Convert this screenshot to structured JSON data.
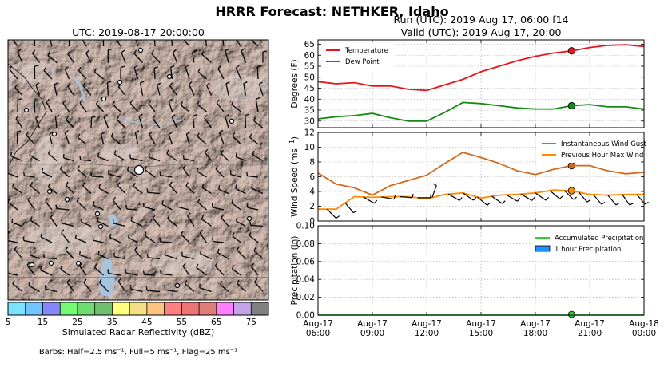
{
  "page": {
    "title": "HRRR Forecast: NETHKER, Idaho",
    "run_line": "Run (UTC): 2019 Aug 17, 06:00 f14",
    "valid_line": "Valid (UTC): 2019 Aug 17, 20:00"
  },
  "map": {
    "title": "UTC: 2019-08-17 20:00:00",
    "terrain_color": "#c9b0a6",
    "valley_color": "#e0d8d2",
    "water_color": "#a8c4dc"
  },
  "colorbar": {
    "label": "Simulated Radar Reflectivity (dBZ)",
    "ticks": [
      "5",
      "15",
      "25",
      "35",
      "45",
      "55",
      "65",
      "75"
    ],
    "tick_values": [
      5,
      15,
      25,
      35,
      45,
      55,
      65,
      75
    ],
    "range": [
      5,
      80
    ],
    "colors": [
      "#7be3ff",
      "#72c6ff",
      "#8686ff",
      "#74fa74",
      "#71db71",
      "#70bf70",
      "#ffff80",
      "#f3e084",
      "#ffc480",
      "#fe8080",
      "#ed7474",
      "#e07c7c",
      "#ff80ff",
      "#c3a3e6",
      "#808080"
    ]
  },
  "barb_note": "Barbs: Half=2.5 ms⁻¹, Full=5 ms⁻¹, Flag=25 ms⁻¹",
  "chart_data": [
    {
      "type": "line",
      "ylabel": "Degrees (F)",
      "ylim": [
        27,
        67
      ],
      "yticks": [
        30,
        35,
        40,
        45,
        50,
        55,
        60,
        65
      ],
      "grid": true,
      "legend": "top-left",
      "marker_hour": 20,
      "series": [
        {
          "name": "Temperature",
          "color": "#e8141c",
          "x": [
            6,
            7,
            8,
            9,
            10,
            11,
            12,
            13,
            14,
            15,
            16,
            17,
            18,
            19,
            20,
            21,
            22,
            23,
            24
          ],
          "values": [
            48,
            47,
            47.5,
            46,
            46,
            44.5,
            44,
            46.5,
            49,
            52.5,
            55,
            57.5,
            59.5,
            61,
            62,
            63.5,
            64.5,
            64.8,
            64
          ]
        },
        {
          "name": "Dew Point",
          "color": "#158a15",
          "x": [
            6,
            7,
            8,
            9,
            10,
            11,
            12,
            13,
            14,
            15,
            16,
            17,
            18,
            19,
            20,
            21,
            22,
            23,
            24
          ],
          "values": [
            31,
            32,
            32.5,
            33.5,
            31.5,
            30,
            30,
            34,
            38.5,
            38,
            37,
            36,
            35.5,
            35.5,
            37,
            37.5,
            36.5,
            36.5,
            35.5
          ]
        }
      ]
    },
    {
      "type": "line",
      "ylabel": "Wind Speed (ms⁻¹)",
      "ylim": [
        0,
        12
      ],
      "yticks": [
        0,
        2,
        4,
        6,
        8,
        10,
        12
      ],
      "grid": true,
      "legend": "top-right",
      "marker_hour": 20,
      "series": [
        {
          "name": "Instantaneous Wind Gust",
          "color": "#d2691e",
          "x": [
            6,
            7,
            8,
            9,
            10,
            11,
            12,
            13,
            14,
            15,
            16,
            17,
            18,
            19,
            20,
            21,
            22,
            23,
            24
          ],
          "values": [
            6.5,
            5,
            4.5,
            3.5,
            4.8,
            5.5,
            6.2,
            7.8,
            9.3,
            8.6,
            7.8,
            6.8,
            6.3,
            7,
            7.5,
            7.5,
            6.8,
            6.4,
            6.6
          ]
        },
        {
          "name": "Previous Hour Max Wind",
          "color": "#ff8c00",
          "x": [
            6,
            7,
            8,
            9,
            10,
            11,
            12,
            13,
            14,
            15,
            16,
            17,
            18,
            19,
            20,
            21,
            22,
            23,
            24
          ],
          "values": [
            1.6,
            1.6,
            3.3,
            3.2,
            3.3,
            3.3,
            3.0,
            3.6,
            3.8,
            3.1,
            3.5,
            3.6,
            3.8,
            4.2,
            4.1,
            3.6,
            3.5,
            3.6,
            3.6
          ]
        }
      ]
    },
    {
      "type": "bar",
      "ylabel": "Precipitation (in)",
      "ylim": [
        0,
        0.1
      ],
      "yticks": [
        "0.00",
        "0.02",
        "0.04",
        "0.06",
        "0.08",
        "0.10"
      ],
      "ytick_values": [
        0,
        0.02,
        0.04,
        0.06,
        0.08,
        0.1
      ],
      "grid": true,
      "legend": "top-right",
      "marker_hour": 20,
      "series": [
        {
          "name": "Accumulated Precipitation",
          "color": "#32cd32",
          "x": [
            6,
            7,
            8,
            9,
            10,
            11,
            12,
            13,
            14,
            15,
            16,
            17,
            18,
            19,
            20,
            21,
            22,
            23,
            24
          ],
          "values": [
            0,
            0,
            0,
            0,
            0,
            0,
            0,
            0,
            0,
            0,
            0,
            0,
            0,
            0,
            0,
            0,
            0,
            0,
            0
          ]
        },
        {
          "name": "1 hour Precipitation",
          "color": "#1e90ff",
          "x": [
            6,
            7,
            8,
            9,
            10,
            11,
            12,
            13,
            14,
            15,
            16,
            17,
            18,
            19,
            20,
            21,
            22,
            23,
            24
          ],
          "values": [
            0,
            0,
            0,
            0,
            0,
            0,
            0,
            0,
            0,
            0,
            0,
            0,
            0,
            0,
            0,
            0,
            0,
            0,
            0
          ]
        }
      ]
    }
  ],
  "time_axis": {
    "range_hours": [
      6,
      24
    ],
    "ticks": [
      {
        "hour": 6,
        "date": "Aug-17",
        "time": "06:00"
      },
      {
        "hour": 9,
        "date": "Aug-17",
        "time": "09:00"
      },
      {
        "hour": 12,
        "date": "Aug-17",
        "time": "12:00"
      },
      {
        "hour": 15,
        "date": "Aug-17",
        "time": "15:00"
      },
      {
        "hour": 18,
        "date": "Aug-17",
        "time": "18:00"
      },
      {
        "hour": 21,
        "date": "Aug-17",
        "time": "21:00"
      },
      {
        "hour": 24,
        "date": "Aug-18",
        "time": "00:00"
      }
    ]
  },
  "wind_barbs_series": [
    {
      "hour": 6.5,
      "dir": 315
    },
    {
      "hour": 7.5,
      "dir": 320
    },
    {
      "hour": 8.5,
      "dir": 300
    },
    {
      "hour": 9.5,
      "dir": 280
    },
    {
      "hour": 10.5,
      "dir": 275
    },
    {
      "hour": 11.5,
      "dir": 270
    },
    {
      "hour": 12.3,
      "dir": 200
    },
    {
      "hour": 13.2,
      "dir": 300
    },
    {
      "hour": 14,
      "dir": 305
    },
    {
      "hour": 14.8,
      "dir": 310
    },
    {
      "hour": 15.6,
      "dir": 305
    },
    {
      "hour": 16.4,
      "dir": 300
    },
    {
      "hour": 17.2,
      "dir": 300
    },
    {
      "hour": 18,
      "dir": 305
    },
    {
      "hour": 18.8,
      "dir": 310
    },
    {
      "hour": 19.6,
      "dir": 315
    },
    {
      "hour": 20.4,
      "dir": 320
    },
    {
      "hour": 21.2,
      "dir": 320
    },
    {
      "hour": 22,
      "dir": 320
    },
    {
      "hour": 22.8,
      "dir": 325
    },
    {
      "hour": 23.6,
      "dir": 320
    }
  ]
}
